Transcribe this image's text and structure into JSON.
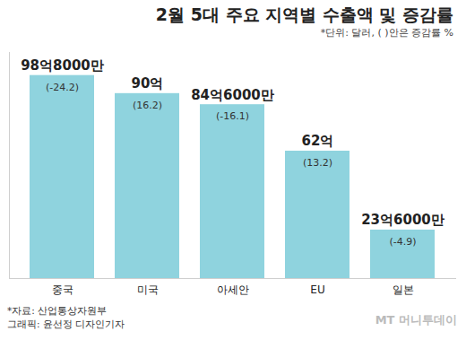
{
  "chart_data": {
    "type": "bar",
    "title": "2월 5대 주요 지역별 수출액 및 증감률",
    "subtitle": "*단위: 달러, ( )안은 증감률 %",
    "categories": [
      "중국",
      "미국",
      "아세안",
      "EU",
      "일본"
    ],
    "values": [
      9880000000,
      9000000000,
      8460000000,
      6200000000,
      2360000000
    ],
    "value_labels": [
      "98억8000만",
      "90억",
      "84억6000만",
      "62억",
      "23억6000만"
    ],
    "growth_rates": [
      -24.2,
      16.2,
      -16.1,
      13.2,
      -4.9
    ],
    "growth_labels": [
      "(-24.2)",
      "(16.2)",
      "(-16.1)",
      "(13.2)",
      "(-4.9)"
    ],
    "color": "#8fd3de",
    "ylim": [
      0,
      11000000000
    ],
    "yticks": [],
    "grid": false,
    "data_labels": true,
    "tick_labels": "x",
    "source": "*자료: 산업통상자원부",
    "credit": "그래픽: 윤선정 디자인기자",
    "watermark": "MT 머니투데이"
  }
}
